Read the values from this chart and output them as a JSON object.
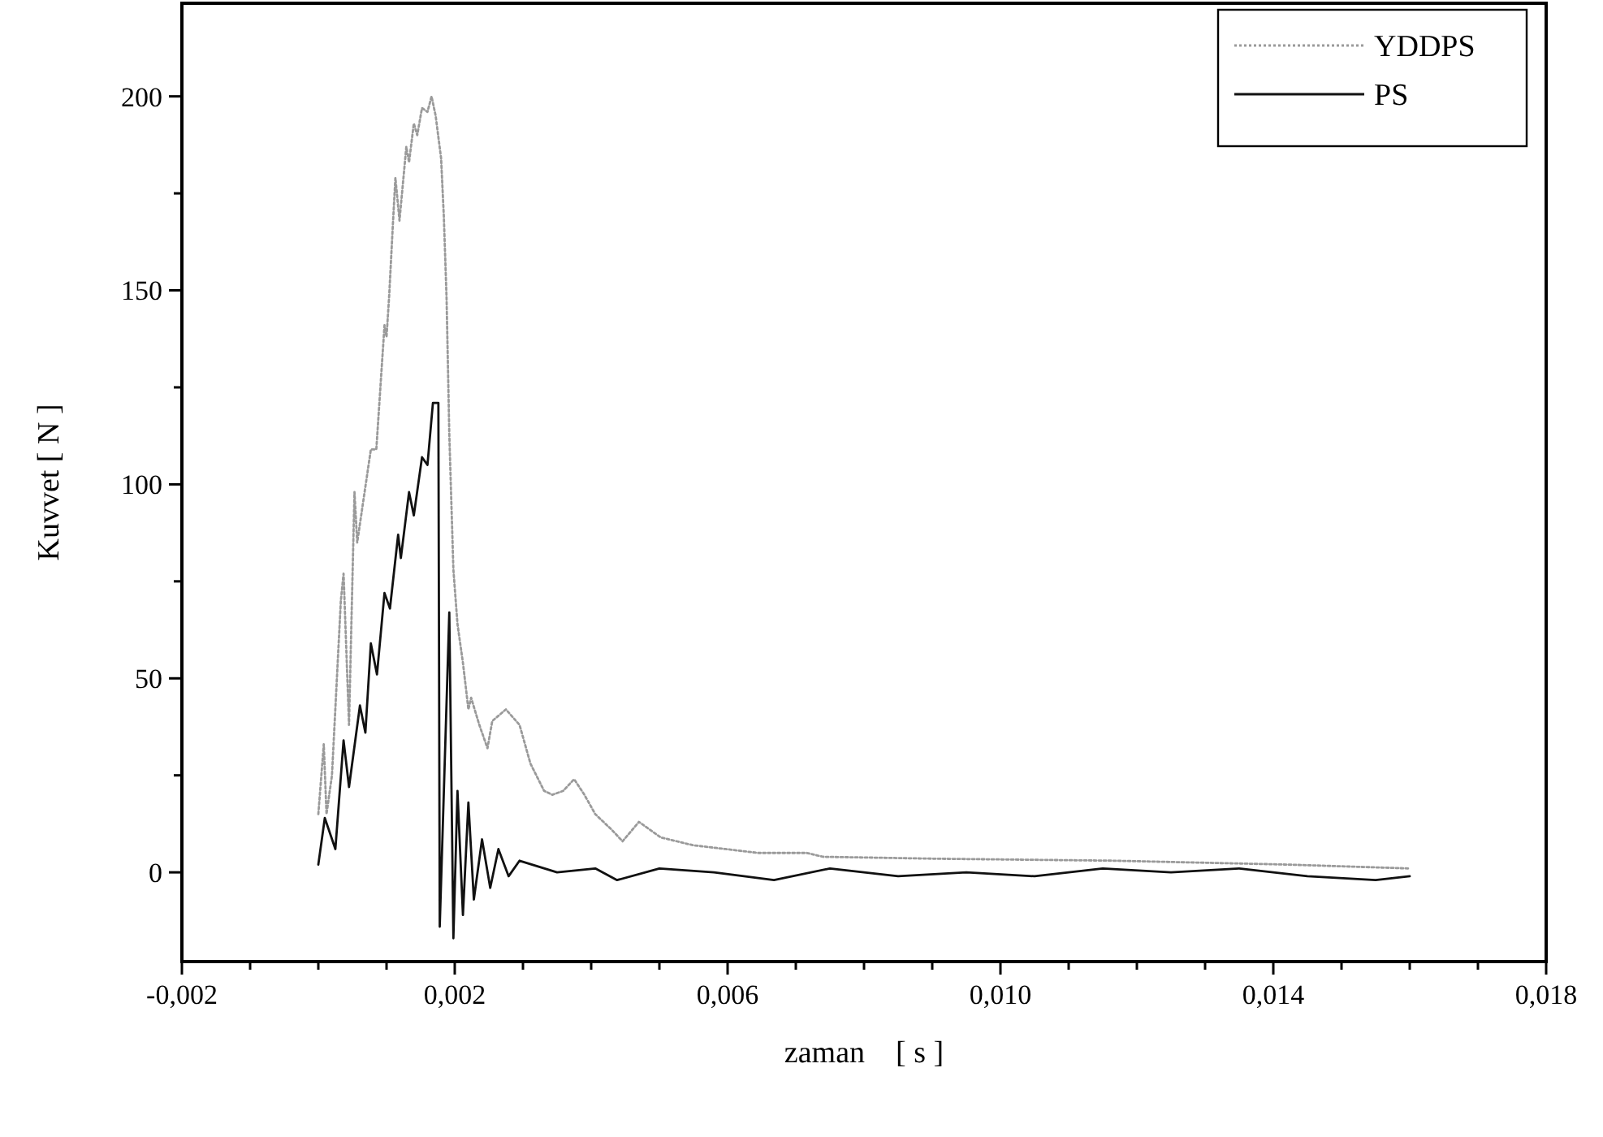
{
  "chart_data": {
    "type": "line",
    "xlabel": "zaman    [ s ]",
    "ylabel": "Kuvvet [ N ]",
    "legend": "top right",
    "grid": false,
    "marker": "none",
    "xlim": [
      -0.002,
      0.018
    ],
    "ylim": [
      -23,
      224
    ],
    "xticks": [
      {
        "value": -0.002,
        "label": "-0,002"
      },
      {
        "value": -0.001,
        "label": null
      },
      {
        "value": 0,
        "label": null
      },
      {
        "value": 0.001,
        "label": null
      },
      {
        "value": 0.002,
        "label": "0,002"
      },
      {
        "value": 0.003,
        "label": null
      },
      {
        "value": 0.004,
        "label": null
      },
      {
        "value": 0.005,
        "label": null
      },
      {
        "value": 0.006,
        "label": "0,006"
      },
      {
        "value": 0.007,
        "label": null
      },
      {
        "value": 0.008,
        "label": null
      },
      {
        "value": 0.009,
        "label": null
      },
      {
        "value": 0.01,
        "label": "0,010"
      },
      {
        "value": 0.011,
        "label": null
      },
      {
        "value": 0.012,
        "label": null
      },
      {
        "value": 0.013,
        "label": null
      },
      {
        "value": 0.014,
        "label": "0,014"
      },
      {
        "value": 0.015,
        "label": null
      },
      {
        "value": 0.016,
        "label": null
      },
      {
        "value": 0.017,
        "label": null
      },
      {
        "value": 0.018,
        "label": "0,018"
      }
    ],
    "yticks": [
      0,
      {
        "value": 25,
        "label": null
      },
      50,
      {
        "value": 75,
        "label": null
      },
      100,
      {
        "value": 125,
        "label": null
      },
      150,
      {
        "value": 175,
        "label": null
      },
      200
    ],
    "series": [
      {
        "name": "YDDPS",
        "color": "#9a9a9a",
        "line_style": "dotted",
        "x": [
          0,
          8e-05,
          0.00012,
          0.0002,
          0.00033,
          0.00037,
          0.00045,
          0.00053,
          0.00057,
          0.00077,
          0.00085,
          0.00097,
          0.001,
          0.00104,
          0.00109,
          0.00113,
          0.00119,
          0.00129,
          0.00133,
          0.0014,
          0.00145,
          0.00152,
          0.0016,
          0.00166,
          0.00172,
          0.0018,
          0.00184,
          0.00188,
          0.00192,
          0.00198,
          0.00204,
          0.00212,
          0.0022,
          0.00224,
          0.00236,
          0.00248,
          0.00255,
          0.00275,
          0.00295,
          0.00311,
          0.00331,
          0.00343,
          0.00359,
          0.00375,
          0.0039,
          0.00406,
          0.0043,
          0.00446,
          0.0047,
          0.00502,
          0.00549,
          0.00597,
          0.00645,
          0.00716,
          0.0074,
          0.0091,
          0.01166,
          0.0142,
          0.016
        ],
        "values": [
          15,
          33,
          15,
          25,
          70,
          77,
          38,
          98,
          85,
          109,
          109,
          141,
          138,
          149,
          166,
          179,
          168,
          187,
          183,
          193,
          190,
          197,
          196,
          200,
          195,
          184,
          169,
          148,
          113,
          78,
          64,
          54,
          42,
          45,
          38,
          32,
          39,
          42,
          38,
          28,
          21,
          20,
          21,
          24,
          20,
          15,
          11,
          8,
          13,
          9,
          7,
          6,
          5,
          5,
          4,
          3.5,
          3,
          2,
          1
        ]
      },
      {
        "name": "PS",
        "color": "#111111",
        "line_style": "solid",
        "x": [
          0,
          9.5e-05,
          0.00025,
          0.00037,
          0.00045,
          0.00061,
          0.00069,
          0.00077,
          0.00086,
          0.00097,
          0.00105,
          0.00117,
          0.00121,
          0.00133,
          0.0014,
          0.00152,
          0.0016,
          0.00168,
          0.00176,
          0.00178,
          0.00192,
          0.00198,
          0.00204,
          0.00212,
          0.0022,
          0.00228,
          0.0024,
          0.00252,
          0.00264,
          0.00279,
          0.00295,
          0.0035,
          0.00406,
          0.00438,
          0.005,
          0.0058,
          0.00668,
          0.0075,
          0.0085,
          0.0095,
          0.0105,
          0.0115,
          0.0125,
          0.0135,
          0.0145,
          0.0155,
          0.016
        ],
        "values": [
          2,
          14,
          6,
          34,
          22,
          43,
          36,
          59,
          51,
          72,
          68,
          87,
          81,
          98,
          92,
          107,
          105,
          121,
          121,
          -14,
          67,
          -17,
          21,
          -11,
          18,
          -7,
          8.5,
          -4,
          6,
          -1,
          3,
          0,
          1,
          -2,
          1,
          0,
          -2,
          1,
          -1,
          0,
          -1,
          1,
          0,
          1,
          -1,
          -2,
          -1
        ]
      }
    ]
  }
}
